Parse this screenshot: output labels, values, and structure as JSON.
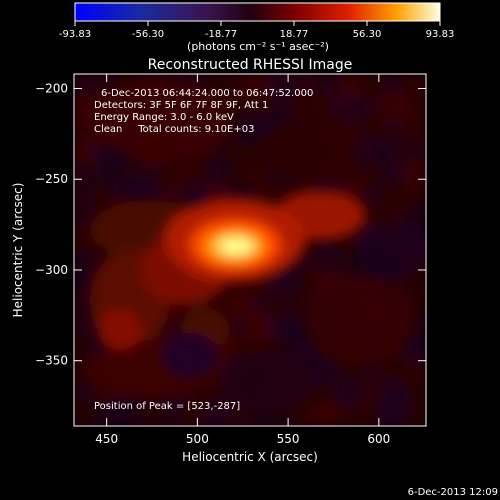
{
  "colorbar": {
    "ticks": [
      "-93.83",
      "-56.30",
      "-18.77",
      "18.77",
      "56.30",
      "93.83"
    ],
    "units": "(photons cm⁻² s⁻¹ asec⁻²)",
    "min": -93.83,
    "max": 93.83
  },
  "plot": {
    "title": "Reconstructed RHESSI Image",
    "info_lines": [
      "6-Dec-2013 06:44:24.000 to 06:47:52.000",
      "Detectors: 3F 5F 6F 7F 8F 9F, Att 1",
      "Energy Range: 3.0 - 6.0 keV",
      "Clean     Total counts: 9.10E+03"
    ],
    "peak_text": "Position of Peak = [523,-287]",
    "xlabel": "Heliocentric X (arcsec)",
    "ylabel": "Heliocentric Y (arcsec)",
    "xlim": [
      432,
      626
    ],
    "ylim": [
      -386,
      -192
    ],
    "x_ticks": [
      "450",
      "500",
      "550",
      "600"
    ],
    "y_ticks": [
      "-200",
      "-250",
      "-300",
      "-350"
    ],
    "peak_x": 523,
    "peak_y": -287
  },
  "footer": {
    "timestamp": "6-Dec-2013 12:09"
  }
}
